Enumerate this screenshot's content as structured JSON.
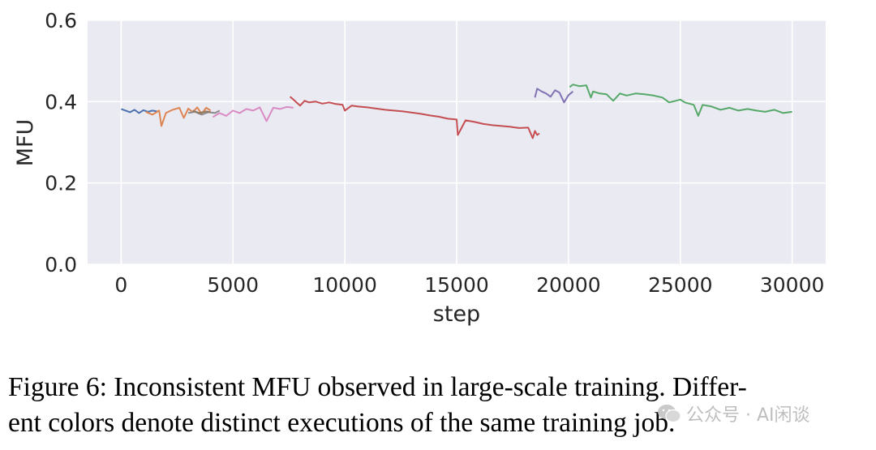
{
  "chart_data": {
    "type": "line",
    "xlabel": "step",
    "ylabel": "MFU",
    "xlim": [
      -1500,
      31500
    ],
    "ylim": [
      0.0,
      0.6
    ],
    "xticks": [
      0,
      5000,
      10000,
      15000,
      20000,
      25000,
      30000
    ],
    "xtick_labels": [
      "0",
      "5000",
      "10000",
      "15000",
      "20000",
      "25000",
      "30000"
    ],
    "yticks": [
      0.0,
      0.2,
      0.4,
      0.6
    ],
    "ytick_labels": [
      "0.0",
      "0.2",
      "0.4",
      "0.6"
    ],
    "grid": true,
    "legend": false,
    "series": [
      {
        "color": "#4c72b0",
        "x": [
          0,
          200,
          400,
          600,
          800,
          1000,
          1200,
          1400,
          1600
        ],
        "y": [
          0.382,
          0.378,
          0.374,
          0.38,
          0.372,
          0.379,
          0.375,
          0.378,
          0.376
        ]
      },
      {
        "color": "#dd8452",
        "x": [
          1100,
          1400,
          1700,
          1800,
          2000,
          2300,
          2600,
          2800,
          3000,
          3200,
          3400,
          3600,
          3800,
          4000
        ],
        "y": [
          0.375,
          0.368,
          0.378,
          0.34,
          0.372,
          0.38,
          0.385,
          0.36,
          0.383,
          0.374,
          0.386,
          0.37,
          0.385,
          0.378
        ]
      },
      {
        "color": "#8c8c8c",
        "x": [
          3000,
          3300,
          3600,
          3900,
          4200,
          4400
        ],
        "y": [
          0.372,
          0.375,
          0.368,
          0.374,
          0.372,
          0.378
        ]
      },
      {
        "color": "#937860",
        "x": [
          3200,
          3500,
          3800,
          4000
        ],
        "y": [
          0.378,
          0.372,
          0.376,
          0.374
        ]
      },
      {
        "color": "#da8bc3",
        "x": [
          4100,
          4400,
          4700,
          5000,
          5300,
          5600,
          5900,
          6200,
          6500,
          6800,
          7100,
          7400,
          7700
        ],
        "y": [
          0.362,
          0.372,
          0.365,
          0.378,
          0.372,
          0.382,
          0.378,
          0.386,
          0.352,
          0.385,
          0.382,
          0.387,
          0.385
        ]
      },
      {
        "color": "#c44e52",
        "x": [
          7550,
          7700,
          8000,
          8200,
          8400,
          8700,
          9000,
          9300,
          9600,
          9900,
          10000,
          10300,
          10600,
          11000,
          11400,
          11800,
          12200,
          12600,
          13000,
          13400,
          13800,
          14200,
          14600,
          15000,
          15050,
          15400,
          15800,
          16200,
          16600,
          17000,
          17400,
          17800,
          18200,
          18400,
          18500,
          18600,
          18700
        ],
        "y": [
          0.412,
          0.405,
          0.39,
          0.402,
          0.398,
          0.4,
          0.395,
          0.398,
          0.394,
          0.392,
          0.378,
          0.39,
          0.388,
          0.386,
          0.383,
          0.38,
          0.378,
          0.376,
          0.373,
          0.37,
          0.366,
          0.363,
          0.358,
          0.356,
          0.318,
          0.354,
          0.35,
          0.345,
          0.342,
          0.34,
          0.338,
          0.335,
          0.336,
          0.31,
          0.328,
          0.318,
          0.322
        ]
      },
      {
        "color": "#8172b3",
        "x": [
          18500,
          18600,
          18800,
          19000,
          19200,
          19400,
          19600,
          19800,
          20000,
          20200
        ],
        "y": [
          0.41,
          0.432,
          0.425,
          0.42,
          0.412,
          0.428,
          0.422,
          0.398,
          0.416,
          0.425
        ]
      },
      {
        "color": "#55a868",
        "x": [
          20050,
          20200,
          20500,
          20800,
          21000,
          21100,
          21400,
          21700,
          22000,
          22300,
          22600,
          23000,
          23400,
          23800,
          24200,
          24500,
          24800,
          25000,
          25200,
          25600,
          25800,
          26000,
          26400,
          26800,
          27200,
          27600,
          28000,
          28400,
          28800,
          29200,
          29600,
          30000
        ],
        "y": [
          0.436,
          0.442,
          0.438,
          0.44,
          0.41,
          0.425,
          0.42,
          0.418,
          0.402,
          0.42,
          0.415,
          0.42,
          0.418,
          0.415,
          0.41,
          0.398,
          0.402,
          0.405,
          0.398,
          0.392,
          0.365,
          0.392,
          0.388,
          0.38,
          0.385,
          0.378,
          0.382,
          0.378,
          0.375,
          0.38,
          0.372,
          0.375
        ]
      }
    ]
  },
  "caption": {
    "line1": "Figure 6: Inconsistent MFU observed in large-scale training. Differ-",
    "line2": "ent colors denote distinct executions of the same training job."
  },
  "watermark": {
    "text": "公众号 · AI闲谈",
    "icon": "wechat-icon"
  }
}
